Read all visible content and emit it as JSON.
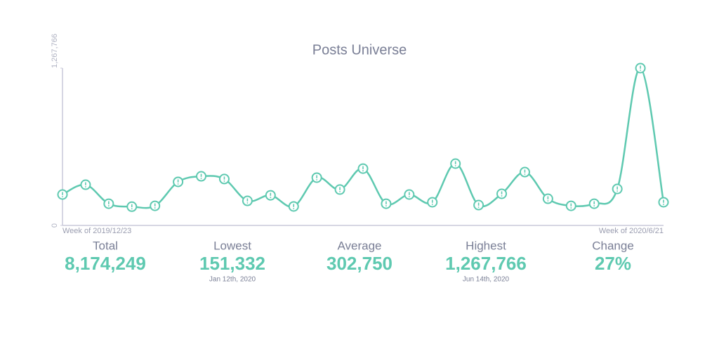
{
  "chart_data": {
    "type": "line",
    "title": "Posts Universe",
    "categories": [
      "Week of 2019/12/23",
      null,
      null,
      null,
      null,
      null,
      null,
      null,
      null,
      null,
      null,
      null,
      null,
      null,
      null,
      null,
      null,
      null,
      null,
      null,
      null,
      null,
      null,
      null,
      null,
      null,
      "Week of 2020/6/21"
    ],
    "series": [
      {
        "name": "Posts",
        "color": "#5ec9b0",
        "values": [
          249000,
          328000,
          175000,
          151332,
          158000,
          351000,
          396000,
          374000,
          198000,
          243000,
          153000,
          385000,
          289000,
          458000,
          175000,
          249000,
          187000,
          498000,
          164000,
          255000,
          430000,
          215000,
          158000,
          175000,
          294000,
          1267766,
          187000
        ]
      }
    ],
    "ylim": [
      0,
      1267766
    ],
    "yticks": [
      0,
      {
        "value": 1267766,
        "label": "1,267,766"
      }
    ],
    "stats": [
      {
        "label": "Total",
        "value": "8,174,249"
      },
      {
        "label": "Lowest",
        "value": "151,332",
        "note": "Jan 12th, 2020"
      },
      {
        "label": "Average",
        "value": "302,750"
      },
      {
        "label": "Highest",
        "value": "1,267,766",
        "note": "Jun 14th, 2020"
      },
      {
        "label": "Change",
        "value": "27%"
      }
    ]
  }
}
